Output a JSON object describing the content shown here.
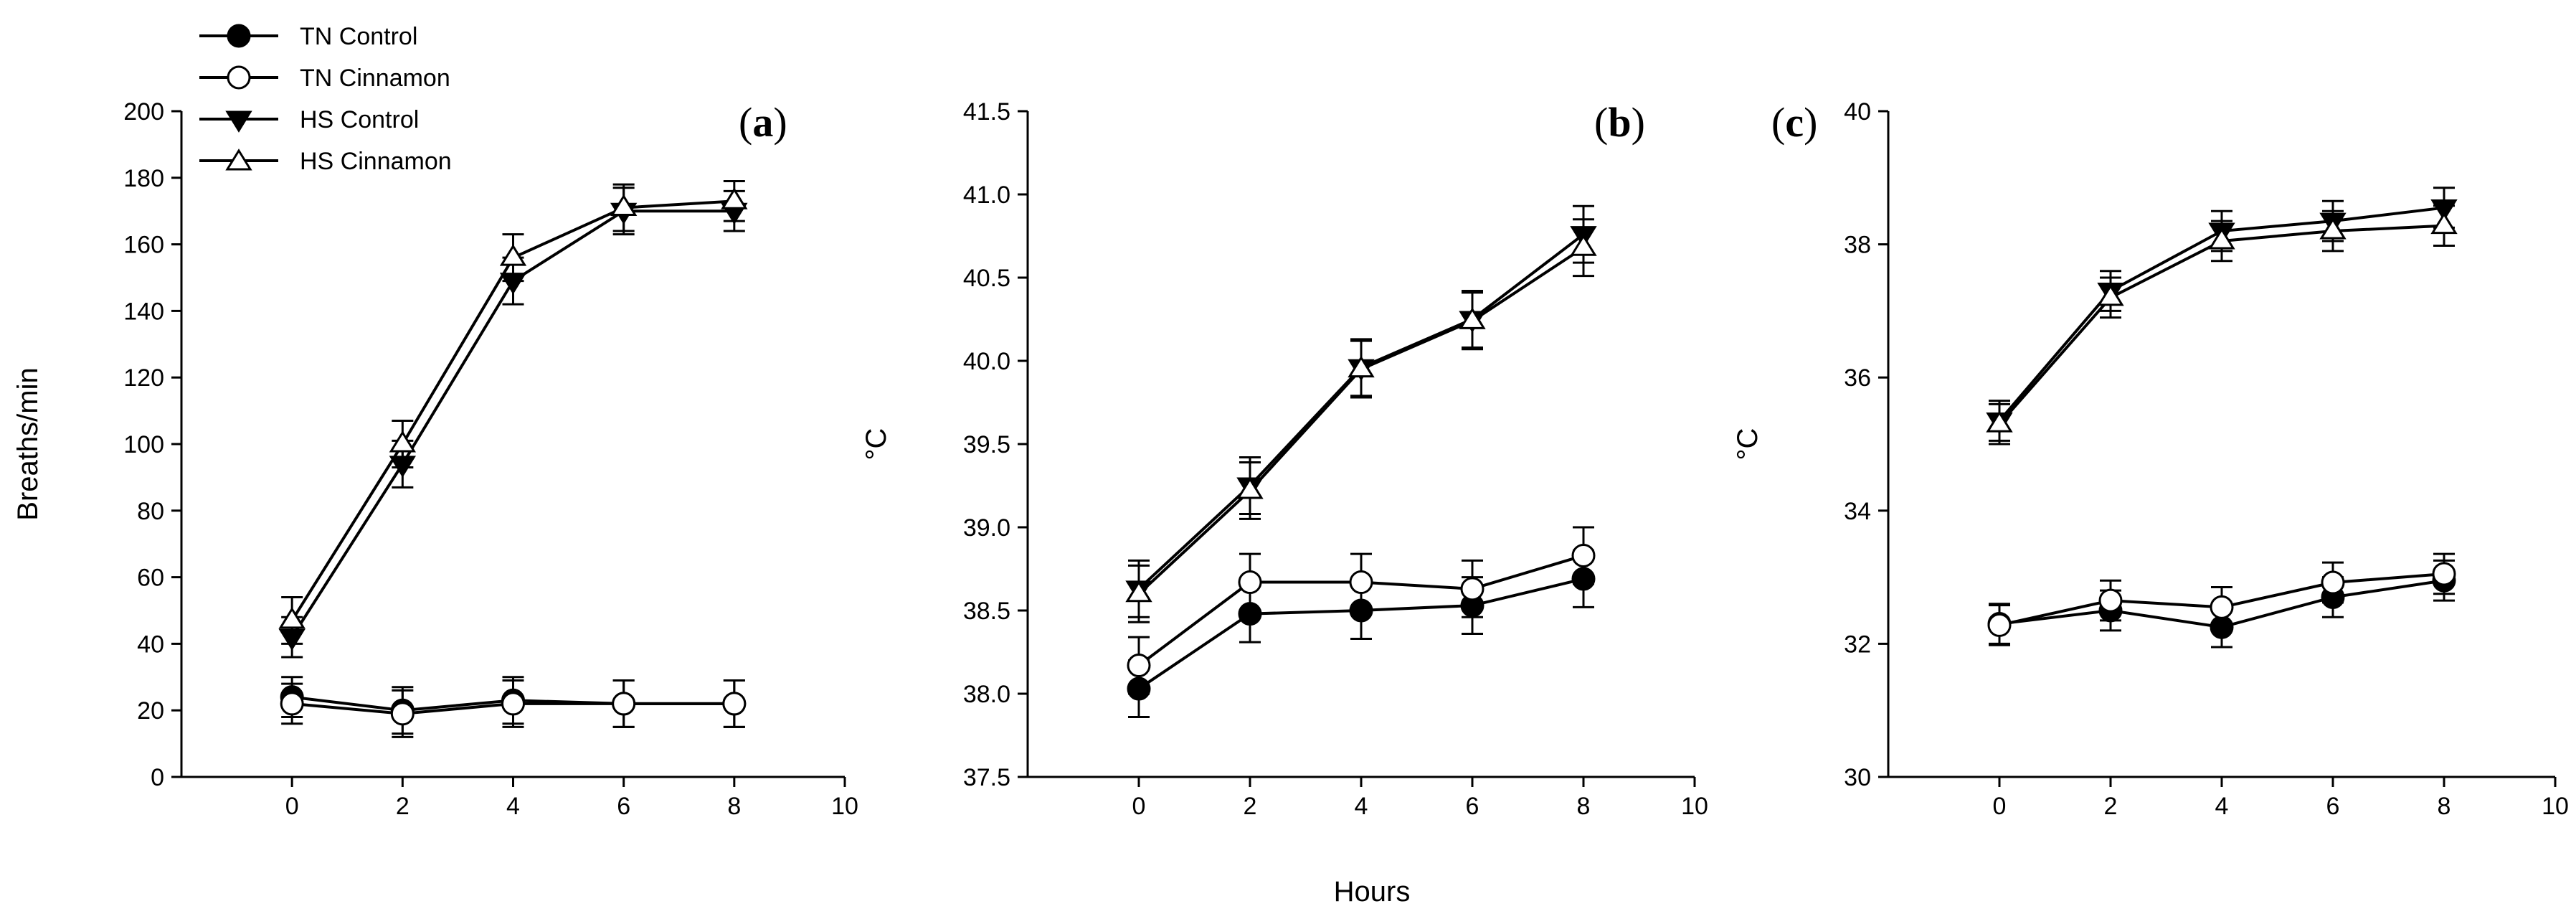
{
  "figure": {
    "shared_xlabel": "Hours",
    "legend": [
      {
        "label": "TN Control",
        "marker": "filled-circle"
      },
      {
        "label": "TN Cinnamon",
        "marker": "open-circle"
      },
      {
        "label": "HS Control",
        "marker": "filled-triangle-down"
      },
      {
        "label": "HS Cinnamon",
        "marker": "open-triangle-up"
      }
    ]
  },
  "chart_data": [
    {
      "type": "line",
      "panel": "a",
      "title": "",
      "xlabel": "",
      "ylabel": "Breaths/min",
      "xlim": [
        -2,
        10
      ],
      "ylim": [
        0,
        200
      ],
      "x_ticks": [
        "0",
        "2",
        "4",
        "6",
        "8",
        "10"
      ],
      "y_ticks": [
        "0",
        "20",
        "40",
        "60",
        "80",
        "100",
        "120",
        "140",
        "160",
        "180",
        "200"
      ],
      "x": [
        0,
        2,
        4,
        6,
        8
      ],
      "series": [
        {
          "name": "TN Control",
          "values": [
            24,
            20,
            23,
            22,
            22
          ],
          "errors": [
            6,
            7,
            7,
            7,
            7
          ]
        },
        {
          "name": "TN Cinnamon",
          "values": [
            22,
            19,
            22,
            22,
            22
          ],
          "errors": [
            6,
            7,
            7,
            7,
            7
          ]
        },
        {
          "name": "HS Control",
          "values": [
            42,
            94,
            149,
            170,
            170
          ],
          "errors": [
            6,
            7,
            7,
            7,
            6
          ]
        },
        {
          "name": "HS Cinnamon",
          "values": [
            47,
            100,
            156,
            171,
            173
          ],
          "errors": [
            7,
            7,
            7,
            7,
            6
          ]
        }
      ]
    },
    {
      "type": "line",
      "panel": "b",
      "title": "",
      "xlabel": "",
      "ylabel": "°C",
      "xlim": [
        -2,
        10
      ],
      "ylim": [
        37.5,
        41.5
      ],
      "x_ticks": [
        "0",
        "2",
        "4",
        "6",
        "8",
        "10"
      ],
      "y_ticks": [
        "37.5",
        "38.0",
        "38.5",
        "39.0",
        "39.5",
        "40.0",
        "40.5",
        "41.0",
        "41.5"
      ],
      "x": [
        0,
        2,
        4,
        6,
        8
      ],
      "series": [
        {
          "name": "TN Control",
          "values": [
            38.03,
            38.48,
            38.5,
            38.53,
            38.69
          ],
          "errors": [
            0.17,
            0.17,
            0.17,
            0.17,
            0.17
          ]
        },
        {
          "name": "TN Cinnamon",
          "values": [
            38.17,
            38.67,
            38.67,
            38.63,
            38.83
          ],
          "errors": [
            0.17,
            0.17,
            0.17,
            0.17,
            0.17
          ]
        },
        {
          "name": "HS Control",
          "values": [
            38.63,
            39.25,
            39.96,
            40.25,
            40.76
          ],
          "errors": [
            0.17,
            0.17,
            0.17,
            0.17,
            0.17
          ]
        },
        {
          "name": "HS Cinnamon",
          "values": [
            38.6,
            39.22,
            39.95,
            40.24,
            40.68
          ],
          "errors": [
            0.17,
            0.17,
            0.17,
            0.17,
            0.17
          ]
        }
      ]
    },
    {
      "type": "line",
      "panel": "c",
      "title": "",
      "xlabel": "",
      "ylabel": "°C",
      "xlim": [
        -2,
        10
      ],
      "ylim": [
        30,
        40
      ],
      "x_ticks": [
        "0",
        "2",
        "4",
        "6",
        "8",
        "10"
      ],
      "y_ticks": [
        "30",
        "32",
        "34",
        "36",
        "38",
        "40"
      ],
      "x": [
        0,
        2,
        4,
        6,
        8
      ],
      "series": [
        {
          "name": "TN Control",
          "values": [
            32.3,
            32.5,
            32.25,
            32.7,
            32.95
          ],
          "errors": [
            0.3,
            0.3,
            0.3,
            0.3,
            0.3
          ]
        },
        {
          "name": "TN Cinnamon",
          "values": [
            32.28,
            32.65,
            32.55,
            32.92,
            33.05
          ],
          "errors": [
            0.3,
            0.3,
            0.3,
            0.3,
            0.3
          ]
        },
        {
          "name": "HS Control",
          "values": [
            35.35,
            37.3,
            38.2,
            38.35,
            38.55
          ],
          "errors": [
            0.3,
            0.3,
            0.3,
            0.3,
            0.3
          ]
        },
        {
          "name": "HS Cinnamon",
          "values": [
            35.3,
            37.2,
            38.05,
            38.2,
            38.28
          ],
          "errors": [
            0.3,
            0.3,
            0.3,
            0.3,
            0.3
          ]
        }
      ]
    }
  ]
}
